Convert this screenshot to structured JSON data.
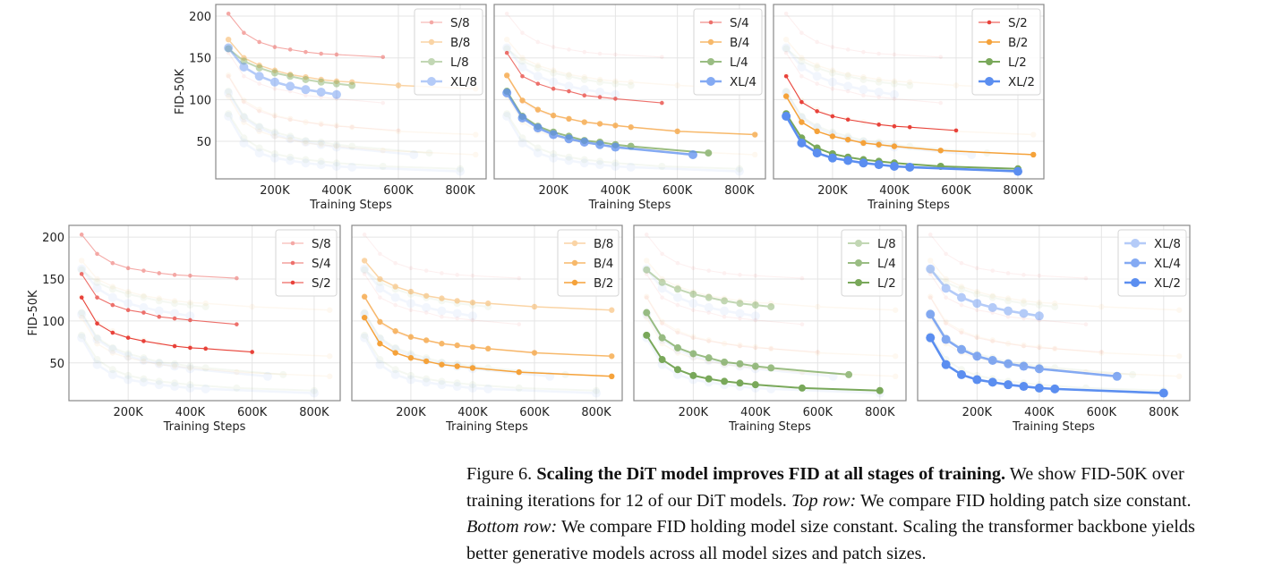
{
  "chart_data": [
    {
      "type": "line",
      "title": "",
      "xlabel": "Training Steps",
      "ylabel": "FID-50K",
      "xlim": [
        9000,
        884000
      ],
      "ylim": [
        5,
        214
      ],
      "xticks": [
        200000,
        400000,
        600000,
        800000
      ],
      "xtick_labels": [
        "200K",
        "400K",
        "600K",
        "800K"
      ],
      "yticks": [
        50,
        100,
        150,
        200
      ],
      "ytick_labels": [
        "50",
        "100",
        "150",
        "200"
      ],
      "grid": true,
      "legend_position": "top-right",
      "colors": {
        "S": "#e8413a",
        "B": "#f5a23a",
        "L": "#79a85a",
        "XL": "#5b8ef0",
        "grid": "#e5e5e5",
        "frame": "#888888"
      },
      "series": [
        {
          "name": "S/8",
          "x": [
            50000,
            100000,
            150000,
            200000,
            250000,
            300000,
            350000,
            400000,
            550000
          ],
          "y": [
            203,
            180,
            169,
            163,
            160,
            157,
            155,
            154,
            151
          ]
        },
        {
          "name": "B/8",
          "x": [
            50000,
            100000,
            150000,
            200000,
            250000,
            300000,
            350000,
            400000,
            450000,
            600000,
            850000
          ],
          "y": [
            172,
            150,
            141,
            135,
            130,
            127,
            124,
            122,
            121,
            117,
            113
          ]
        },
        {
          "name": "L/8",
          "x": [
            50000,
            100000,
            150000,
            200000,
            250000,
            300000,
            350000,
            400000,
            450000
          ],
          "y": [
            161,
            146,
            138,
            132,
            128,
            124,
            121,
            119,
            117
          ]
        },
        {
          "name": "XL/8",
          "x": [
            50000,
            100000,
            150000,
            200000,
            250000,
            300000,
            350000,
            400000
          ],
          "y": [
            162,
            139,
            128,
            121,
            116,
            112,
            109,
            106
          ]
        },
        {
          "name": "S/4",
          "x": [
            50000,
            100000,
            150000,
            200000,
            250000,
            300000,
            350000,
            400000,
            550000
          ],
          "y": [
            156,
            128,
            119,
            113,
            110,
            105,
            103,
            101,
            96
          ]
        },
        {
          "name": "B/4",
          "x": [
            50000,
            100000,
            150000,
            200000,
            250000,
            300000,
            350000,
            400000,
            450000,
            600000,
            850000
          ],
          "y": [
            129,
            99,
            88,
            81,
            77,
            73,
            71,
            69,
            67,
            62,
            58
          ]
        },
        {
          "name": "L/4",
          "x": [
            50000,
            100000,
            150000,
            200000,
            250000,
            300000,
            350000,
            400000,
            450000,
            700000
          ],
          "y": [
            110,
            80,
            68,
            61,
            56,
            51,
            49,
            46,
            44,
            36
          ]
        },
        {
          "name": "XL/4",
          "x": [
            50000,
            100000,
            150000,
            200000,
            250000,
            300000,
            350000,
            400000,
            650000
          ],
          "y": [
            108,
            78,
            66,
            58,
            53,
            49,
            46,
            43,
            34
          ]
        },
        {
          "name": "S/2",
          "x": [
            50000,
            100000,
            150000,
            200000,
            250000,
            350000,
            400000,
            450000,
            600000
          ],
          "y": [
            128,
            97,
            86,
            80,
            76,
            70,
            68,
            67,
            63
          ]
        },
        {
          "name": "B/2",
          "x": [
            50000,
            100000,
            150000,
            200000,
            250000,
            300000,
            350000,
            400000,
            550000,
            850000
          ],
          "y": [
            104,
            73,
            62,
            56,
            52,
            48,
            46,
            44,
            39,
            34
          ]
        },
        {
          "name": "L/2",
          "x": [
            50000,
            100000,
            150000,
            200000,
            250000,
            300000,
            350000,
            400000,
            550000,
            800000
          ],
          "y": [
            83,
            54,
            42,
            35,
            31,
            28,
            26,
            24,
            20,
            17
          ]
        },
        {
          "name": "XL/2",
          "x": [
            50000,
            100000,
            150000,
            200000,
            250000,
            300000,
            350000,
            400000,
            450000,
            800000
          ],
          "y": [
            80,
            48,
            36,
            30,
            27,
            24,
            22,
            20,
            19,
            14
          ]
        }
      ],
      "panels": [
        {
          "row": "top",
          "highlight": [
            "S/8",
            "B/8",
            "L/8",
            "XL/8"
          ],
          "show_ylabel": true
        },
        {
          "row": "top",
          "highlight": [
            "S/4",
            "B/4",
            "L/4",
            "XL/4"
          ],
          "show_ylabel": false
        },
        {
          "row": "top",
          "highlight": [
            "S/2",
            "B/2",
            "L/2",
            "XL/2"
          ],
          "show_ylabel": false
        },
        {
          "row": "bottom",
          "highlight": [
            "S/8",
            "S/4",
            "S/2"
          ],
          "show_ylabel": true
        },
        {
          "row": "bottom",
          "highlight": [
            "B/8",
            "B/4",
            "B/2"
          ],
          "show_ylabel": false
        },
        {
          "row": "bottom",
          "highlight": [
            "L/8",
            "L/4",
            "L/2"
          ],
          "show_ylabel": false
        },
        {
          "row": "bottom",
          "highlight": [
            "XL/8",
            "XL/4",
            "XL/2"
          ],
          "show_ylabel": false
        }
      ]
    }
  ],
  "caption": {
    "label": "Figure 6.",
    "bold": "Scaling the DiT model improves FID at all stages of training.",
    "text1": "We show FID-50K over training iterations for 12 of our DiT models.",
    "top_row_label": "Top row:",
    "text2": "We compare FID holding patch size constant.",
    "bottom_row_label": "Bottom row:",
    "text3": "We compare FID holding model size constant. Scaling the transformer backbone yields better generative models across all model sizes and patch sizes."
  }
}
